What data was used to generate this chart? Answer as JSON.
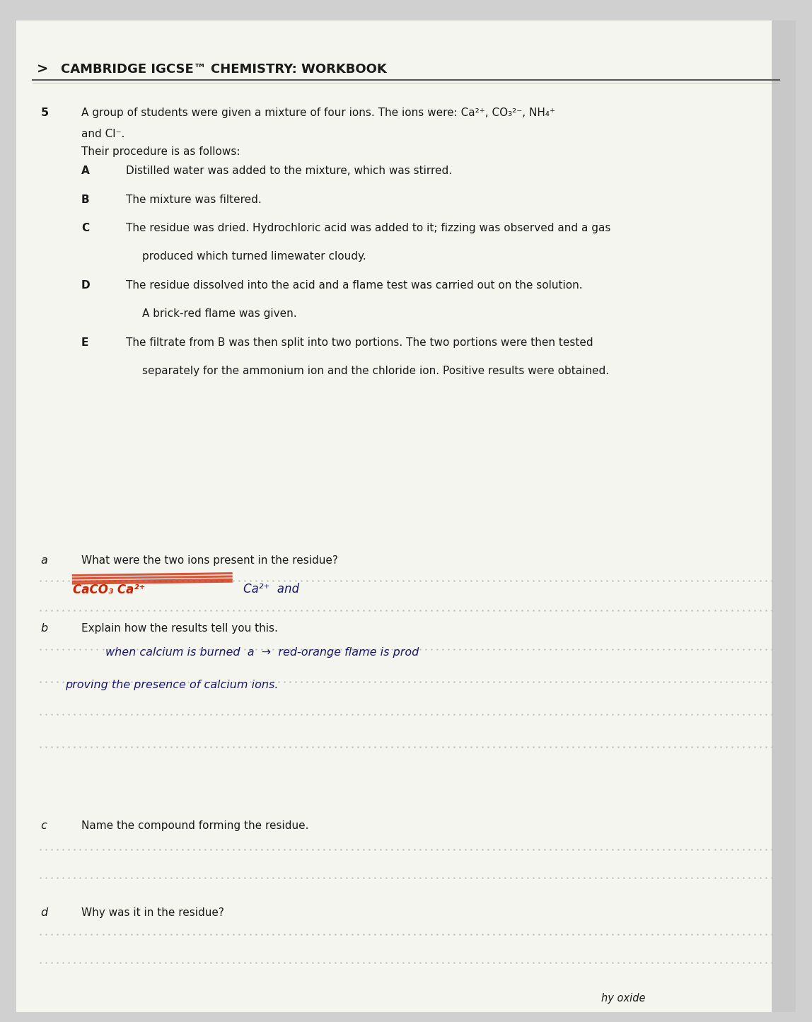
{
  "bg_color": "#d0d0d0",
  "page_bg": "#f5f5f0",
  "header_text": "CAMBRIDGE IGCSE™ CHEMISTRY: WORKBOOK",
  "header_fontsize": 13,
  "body_fontsize": 11.5,
  "question_number": "5",
  "intro_line1": "A group of students were given a mixture of four ions. The ions were: Ca²⁺, CO₃²⁻, NH₄⁺",
  "intro_line2": "and Cl⁻.",
  "procedure_intro": "Their procedure is as follows:",
  "text_color": "#1a1a1a",
  "handwriting_color": "#1a1a70",
  "scribble_color": "#cc2200",
  "footer_text": "hy oxide"
}
